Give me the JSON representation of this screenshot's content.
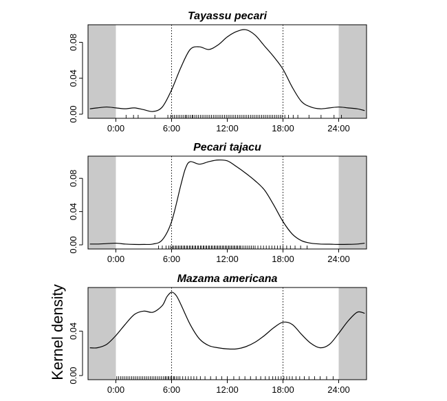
{
  "ylabel": "Kernel density",
  "chart_data": [
    {
      "type": "line",
      "title": "Tayassu pecari",
      "xlim": [
        -3,
        27
      ],
      "ylim": [
        0,
        0.098
      ],
      "x_ticks": [
        0,
        6,
        12,
        18,
        24
      ],
      "x_tick_labels": [
        "0:00",
        "6:00",
        "12:00",
        "18:00",
        "24:00"
      ],
      "y_ticks": [
        0,
        0.04,
        0.08
      ],
      "y_tick_labels": [
        "0.00",
        "0.04",
        "0.08"
      ],
      "shaded_regions": [
        [
          -3,
          0
        ],
        [
          24,
          27
        ]
      ],
      "reference_lines": [
        6,
        18
      ],
      "series": [
        {
          "x": [
            -2.8,
            -2,
            -1,
            0,
            1,
            2,
            3,
            4,
            5,
            6,
            7,
            8,
            9,
            10,
            11,
            12,
            13,
            14,
            15,
            16,
            17,
            18,
            19,
            20,
            21,
            22,
            23,
            24,
            25,
            26,
            26.8
          ],
          "y": [
            0.006,
            0.007,
            0.008,
            0.007,
            0.006,
            0.007,
            0.005,
            0.003,
            0.008,
            0.027,
            0.052,
            0.072,
            0.075,
            0.072,
            0.077,
            0.086,
            0.092,
            0.094,
            0.088,
            0.076,
            0.064,
            0.05,
            0.03,
            0.014,
            0.008,
            0.006,
            0.007,
            0.008,
            0.007,
            0.006,
            0.004
          ]
        }
      ],
      "rug": [
        1.1,
        1.9,
        2.4,
        4.2,
        5.6,
        5.9,
        6.1,
        6.3,
        6.5,
        6.7,
        6.9,
        7.1,
        7.3,
        7.5,
        7.6,
        7.8,
        8.0,
        8.2,
        8.3,
        8.5,
        8.7,
        8.9,
        9.1,
        9.3,
        9.5,
        9.7,
        9.9,
        10.1,
        10.3,
        10.5,
        10.7,
        10.9,
        11.1,
        11.3,
        11.5,
        11.7,
        11.9,
        12.1,
        12.3,
        12.5,
        12.7,
        12.9,
        13.1,
        13.3,
        13.5,
        13.7,
        13.9,
        14.1,
        14.3,
        14.5,
        14.7,
        14.9,
        15.1,
        15.3,
        15.5,
        15.7,
        15.9,
        16.1,
        16.3,
        16.5,
        16.7,
        16.9,
        17.1,
        17.3,
        17.5,
        17.7,
        17.9,
        18.2,
        18.6,
        19.1,
        19.6,
        20.8,
        22.1,
        23.5,
        24.3
      ]
    },
    {
      "type": "line",
      "title": "Pecari tajacu",
      "xlim": [
        -3,
        27
      ],
      "ylim": [
        0,
        0.105
      ],
      "x_ticks": [
        0,
        6,
        12,
        18,
        24
      ],
      "x_tick_labels": [
        "0:00",
        "6:00",
        "12:00",
        "18:00",
        "24:00"
      ],
      "y_ticks": [
        0,
        0.04,
        0.08
      ],
      "y_tick_labels": [
        "0.00",
        "0.04",
        "0.08"
      ],
      "shaded_regions": [
        [
          -3,
          0
        ],
        [
          24,
          27
        ]
      ],
      "reference_lines": [
        6,
        18
      ],
      "series": [
        {
          "x": [
            -2.8,
            -2,
            -1,
            0,
            1,
            2,
            3,
            4,
            5,
            6,
            7,
            7.5,
            8,
            9,
            10,
            11,
            12,
            13,
            14,
            15,
            16,
            17,
            18,
            19,
            20,
            21,
            22,
            23,
            24,
            25,
            26,
            26.8
          ],
          "y": [
            0.001,
            0.001,
            0.0015,
            0.002,
            0.001,
            0.0005,
            0.0005,
            0.001,
            0.006,
            0.028,
            0.072,
            0.092,
            0.1,
            0.097,
            0.1,
            0.102,
            0.101,
            0.094,
            0.086,
            0.077,
            0.066,
            0.048,
            0.028,
            0.013,
            0.005,
            0.002,
            0.001,
            0.0008,
            0.0005,
            0.0006,
            0.001,
            0.002
          ]
        }
      ],
      "rug": [
        4.6,
        5.0,
        5.4,
        5.7,
        5.9,
        6.1,
        6.2,
        6.4,
        6.5,
        6.7,
        6.8,
        7.0,
        7.1,
        7.3,
        7.4,
        7.6,
        7.7,
        7.9,
        8.0,
        8.2,
        8.3,
        8.5,
        8.6,
        8.8,
        8.9,
        9.1,
        9.2,
        9.4,
        9.5,
        9.7,
        9.8,
        10.0,
        10.1,
        10.3,
        10.4,
        10.6,
        10.7,
        10.9,
        11.0,
        11.2,
        11.3,
        11.5,
        11.6,
        11.8,
        11.9,
        12.1,
        12.2,
        12.4,
        12.5,
        12.7,
        12.8,
        13.0,
        13.1,
        13.3,
        13.4,
        13.6,
        13.8,
        14.0,
        14.2,
        14.4,
        14.6,
        14.8,
        15.0,
        15.3,
        15.6,
        15.9,
        16.2,
        16.5,
        16.8,
        17.1,
        17.4,
        17.7,
        18.0,
        18.4,
        18.8,
        19.3,
        19.9,
        20.6
      ]
    },
    {
      "type": "line",
      "title": "Mazama americana",
      "xlim": [
        -3,
        27
      ],
      "ylim": [
        0,
        0.078
      ],
      "x_ticks": [
        0,
        6,
        12,
        18,
        24
      ],
      "x_tick_labels": [
        "0:00",
        "6:00",
        "12:00",
        "18:00",
        "24:00"
      ],
      "y_ticks": [
        0,
        0.04
      ],
      "y_tick_labels": [
        "0.00",
        "0.04"
      ],
      "shaded_regions": [
        [
          -3,
          0
        ],
        [
          24,
          27
        ]
      ],
      "reference_lines": [
        6,
        18
      ],
      "series": [
        {
          "x": [
            -2.8,
            -2,
            -1,
            0,
            1,
            2,
            3,
            4,
            5,
            5.5,
            6,
            6.5,
            7,
            8,
            9,
            10,
            11,
            12,
            13,
            14,
            15,
            16,
            17,
            18,
            19,
            20,
            21,
            22,
            23,
            24,
            25,
            26,
            26.8
          ],
          "y": [
            0.025,
            0.025,
            0.028,
            0.036,
            0.046,
            0.055,
            0.058,
            0.057,
            0.063,
            0.071,
            0.075,
            0.072,
            0.064,
            0.046,
            0.033,
            0.027,
            0.025,
            0.024,
            0.024,
            0.026,
            0.03,
            0.036,
            0.043,
            0.048,
            0.046,
            0.037,
            0.029,
            0.025,
            0.028,
            0.038,
            0.049,
            0.057,
            0.056
          ]
        }
      ],
      "rug": [
        0.1,
        0.3,
        0.5,
        0.7,
        0.9,
        1.1,
        1.3,
        1.5,
        1.7,
        1.9,
        2.1,
        2.3,
        2.5,
        2.7,
        2.9,
        3.1,
        3.3,
        3.5,
        3.7,
        3.9,
        4.1,
        4.3,
        4.5,
        4.7,
        4.9,
        5.1,
        5.3,
        5.4,
        5.6,
        5.7,
        5.9,
        6.0,
        6.2,
        6.3,
        6.5,
        6.7,
        6.9,
        7.2,
        7.5,
        7.8,
        8.1,
        8.4,
        8.7,
        9.1,
        9.6,
        10.2,
        10.8,
        11.4,
        12.0,
        12.7,
        13.3,
        13.9,
        14.5,
        15.1,
        15.6,
        16.1,
        16.5,
        16.9,
        17.2,
        17.5,
        17.8,
        18.1,
        18.4,
        18.7,
        19.0,
        19.4,
        19.8,
        20.3,
        20.8,
        21.4,
        22.0,
        22.7,
        23.4
      ]
    }
  ]
}
